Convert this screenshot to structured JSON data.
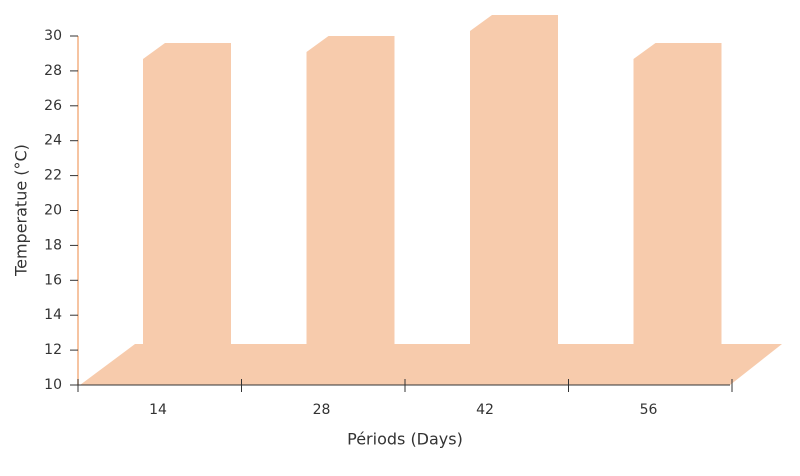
{
  "chart_data": {
    "type": "area3d",
    "x_label": "Périods (Days)",
    "y_label": "Temperatue (°C)",
    "categories": [
      "14",
      "28",
      "42",
      "56"
    ],
    "values": [
      29.6,
      30,
      31.2,
      29.6
    ],
    "color": "#f7cbac",
    "ylim": [
      10,
      30
    ],
    "yticks": [
      10,
      12,
      14,
      16,
      18,
      20,
      22,
      24,
      26,
      28,
      30
    ]
  }
}
